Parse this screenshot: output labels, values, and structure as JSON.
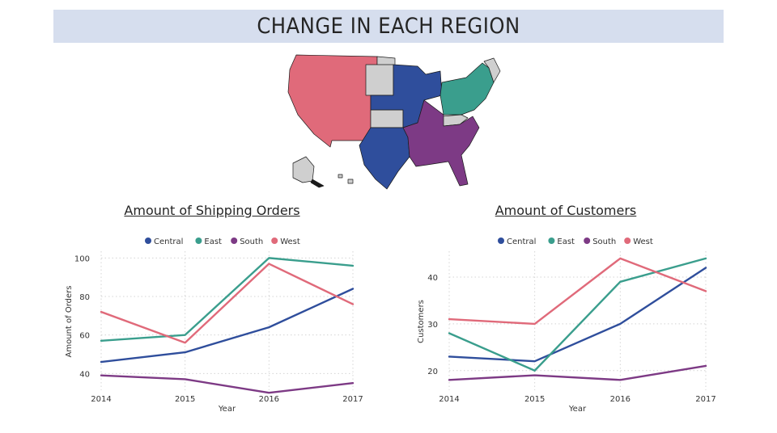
{
  "page_title": "CHANGE IN EACH REGION",
  "region_colors": {
    "Central": "#2f4e9c",
    "East": "#3a9e8d",
    "South": "#7d3a85",
    "West": "#e06a7a",
    "Other": "#cfcfcf"
  },
  "chart_data": [
    {
      "type": "line",
      "title": "Amount of Shipping Orders",
      "xlabel": "Year",
      "ylabel": "Amount of Orders",
      "x": [
        "2014",
        "2015",
        "2016",
        "2017"
      ],
      "yticks": [
        40,
        60,
        80,
        100
      ],
      "ylim": [
        33,
        101
      ],
      "legend": "top-center",
      "grid": true,
      "series": [
        {
          "name": "Central",
          "color": "#2f4e9c",
          "values": [
            46,
            51,
            64,
            84
          ]
        },
        {
          "name": "East",
          "color": "#3a9e8d",
          "values": [
            57,
            60,
            100,
            96
          ]
        },
        {
          "name": "South",
          "color": "#7d3a85",
          "values": [
            39,
            37,
            30,
            35
          ]
        },
        {
          "name": "West",
          "color": "#e06a7a",
          "values": [
            72,
            56,
            97,
            76
          ]
        }
      ]
    },
    {
      "type": "line",
      "title": "Amount of Customers",
      "xlabel": "Year",
      "ylabel": "Customers",
      "x": [
        "2014",
        "2015",
        "2016",
        "2017"
      ],
      "yticks": [
        20,
        30,
        40
      ],
      "ylim": [
        16.5,
        44.5
      ],
      "legend": "top-center",
      "grid": true,
      "series": [
        {
          "name": "Central",
          "color": "#2f4e9c",
          "values": [
            23,
            22,
            30,
            42
          ]
        },
        {
          "name": "East",
          "color": "#3a9e8d",
          "values": [
            28,
            20,
            39,
            44
          ]
        },
        {
          "name": "South",
          "color": "#7d3a85",
          "values": [
            18,
            19,
            18,
            21
          ]
        },
        {
          "name": "West",
          "color": "#e06a7a",
          "values": [
            31,
            30,
            44,
            37
          ]
        }
      ]
    }
  ]
}
